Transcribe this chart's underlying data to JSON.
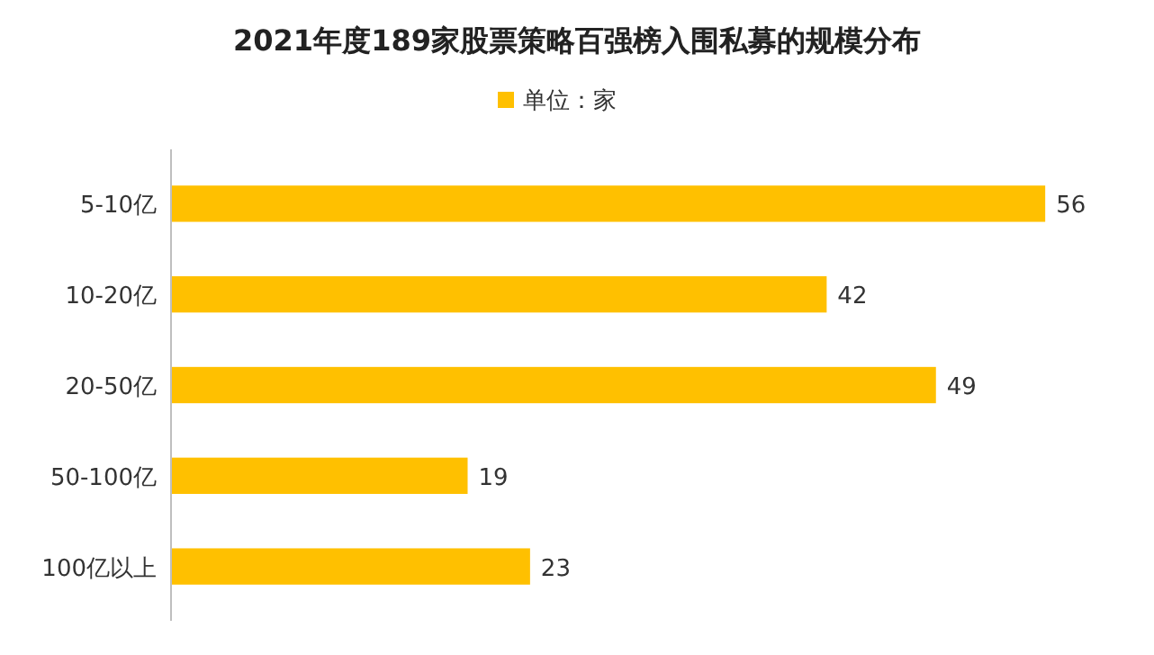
{
  "chart_data": {
    "type": "bar",
    "orientation": "horizontal",
    "title": "2021年度189家股票策略百强榜入围私募的规模分布",
    "categories": [
      "5-10亿",
      "10-20亿",
      "20-50亿",
      "50-100亿",
      "100亿以上"
    ],
    "series": [
      {
        "name": "单位：家",
        "color": "#ffc000",
        "values": [
          56,
          42,
          49,
          19,
          23
        ]
      }
    ],
    "data_labels": true,
    "legend": "top",
    "grid": false
  }
}
